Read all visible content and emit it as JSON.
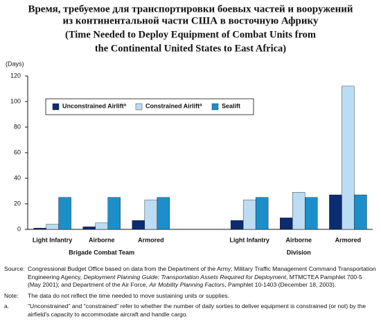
{
  "chart_data": {
    "type": "bar",
    "title": [
      "Время, требуемое для транспортировки боевых частей и вооружений",
      "из континентальной части США в восточную Африку"
    ],
    "subtitle": [
      "(Time Needed to Deploy Equipment of Combat Units from",
      "the Continental United States to East Africa)"
    ],
    "y_label": "(Days)",
    "categories": [
      "Light Infantry",
      "Airborne",
      "Armored",
      null,
      "Light Infantry",
      "Airborne",
      "Armored"
    ],
    "group_labels": [
      "Brigade Combat Team",
      "Division"
    ],
    "series": [
      {
        "name": "Unconstrained Airlift",
        "note": "a",
        "color": "#0b2c6f",
        "values": [
          1,
          2,
          7,
          null,
          7,
          9,
          27
        ]
      },
      {
        "name": "Constrained Airlift",
        "note": "a",
        "color": "#bcdcf3",
        "values": [
          4,
          5,
          23,
          null,
          23,
          29,
          112
        ]
      },
      {
        "name": "Sealift",
        "color": "#1c8fca",
        "values": [
          25,
          25,
          25,
          null,
          25,
          25,
          27
        ]
      }
    ],
    "ylim": [
      0,
      120
    ],
    "yticks": [
      0,
      20,
      40,
      60,
      80,
      100,
      120
    ],
    "grid": false,
    "source_label": "Source:",
    "source": [
      "Congressional Budget Office based on data from the Department of the Army; Military Traffic Management Command Transportation Engineering Agency, ",
      "Deployment Planning Guide: Transportation Assets Required for Deployment",
      ", MTMCTEA Pamphlet 700-5 (May 2001); and Department of the Air Force, ",
      "Air Mobility Planning Factors",
      ", Pamphlet 10-1403 (December 18, 2003)."
    ],
    "note_label": "Note:",
    "note": "The data do not reflect the time needed to move sustaining units or supplies.",
    "footnote_label": "a.",
    "footnote": "\"Unconstrained\" and \"constrained\" refer to whether the number of daily sorties to deliver equipment is constrained (or not) by the airfield's capacity to accommodate aircraft and handle cargo."
  }
}
